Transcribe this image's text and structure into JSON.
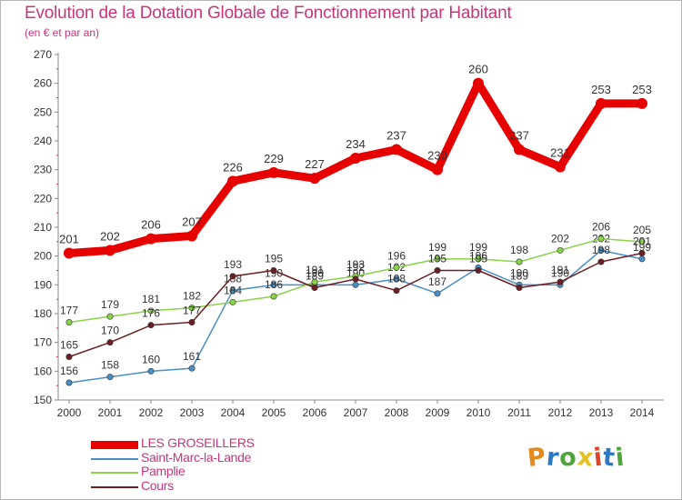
{
  "title": "Evolution de la Dotation Globale de Fonctionnement par Habitant",
  "subtitle": "(en € et par an)",
  "logo_letters": [
    {
      "ch": "P",
      "color": "#e58b1e"
    },
    {
      "ch": "r",
      "color": "#2f78c4"
    },
    {
      "ch": "o",
      "color": "#4fa43c"
    },
    {
      "ch": "x",
      "color": "#e5c21e"
    },
    {
      "ch": "i",
      "color": "#d9462b"
    },
    {
      "ch": "t",
      "color": "#2f78c4"
    },
    {
      "ch": "i",
      "color": "#4fa43c"
    }
  ],
  "chart_data": {
    "type": "line",
    "title": "Evolution de la Dotation Globale de Fonctionnement par Habitant",
    "subtitle": "(en € et par an)",
    "x": [
      "2000",
      "2001",
      "2002",
      "2003",
      "2004",
      "2005",
      "2006",
      "2007",
      "2008",
      "2009",
      "2010",
      "2011",
      "2012",
      "2013",
      "2014"
    ],
    "ylim": [
      150,
      270
    ],
    "yticks": [
      150,
      160,
      170,
      180,
      190,
      200,
      210,
      220,
      230,
      240,
      250,
      260,
      270
    ],
    "grid": false,
    "legend_position": "bottom-left",
    "series": [
      {
        "name": "LES GROSEILLERS",
        "color": "#e60000",
        "emphasis": true,
        "values": [
          201,
          202,
          206,
          207,
          226,
          229,
          227,
          234,
          237,
          230,
          260,
          237,
          231,
          253,
          253
        ]
      },
      {
        "name": "Saint-Marc-la-Lande",
        "color": "#4a8ec4",
        "emphasis": false,
        "values": [
          156,
          158,
          160,
          161,
          188,
          190,
          190,
          190,
          192,
          187,
          196,
          190,
          190,
          202,
          199
        ]
      },
      {
        "name": "Pamplie",
        "color": "#8ad24a",
        "emphasis": false,
        "values": [
          177,
          179,
          181,
          182,
          184,
          186,
          191,
          193,
          196,
          199,
          199,
          198,
          202,
          206,
          205
        ]
      },
      {
        "name": "Cours",
        "color": "#6b1e24",
        "emphasis": false,
        "values": [
          165,
          170,
          176,
          177,
          193,
          195,
          189,
          192,
          188,
          195,
          195,
          189,
          191,
          198,
          201
        ]
      }
    ]
  }
}
